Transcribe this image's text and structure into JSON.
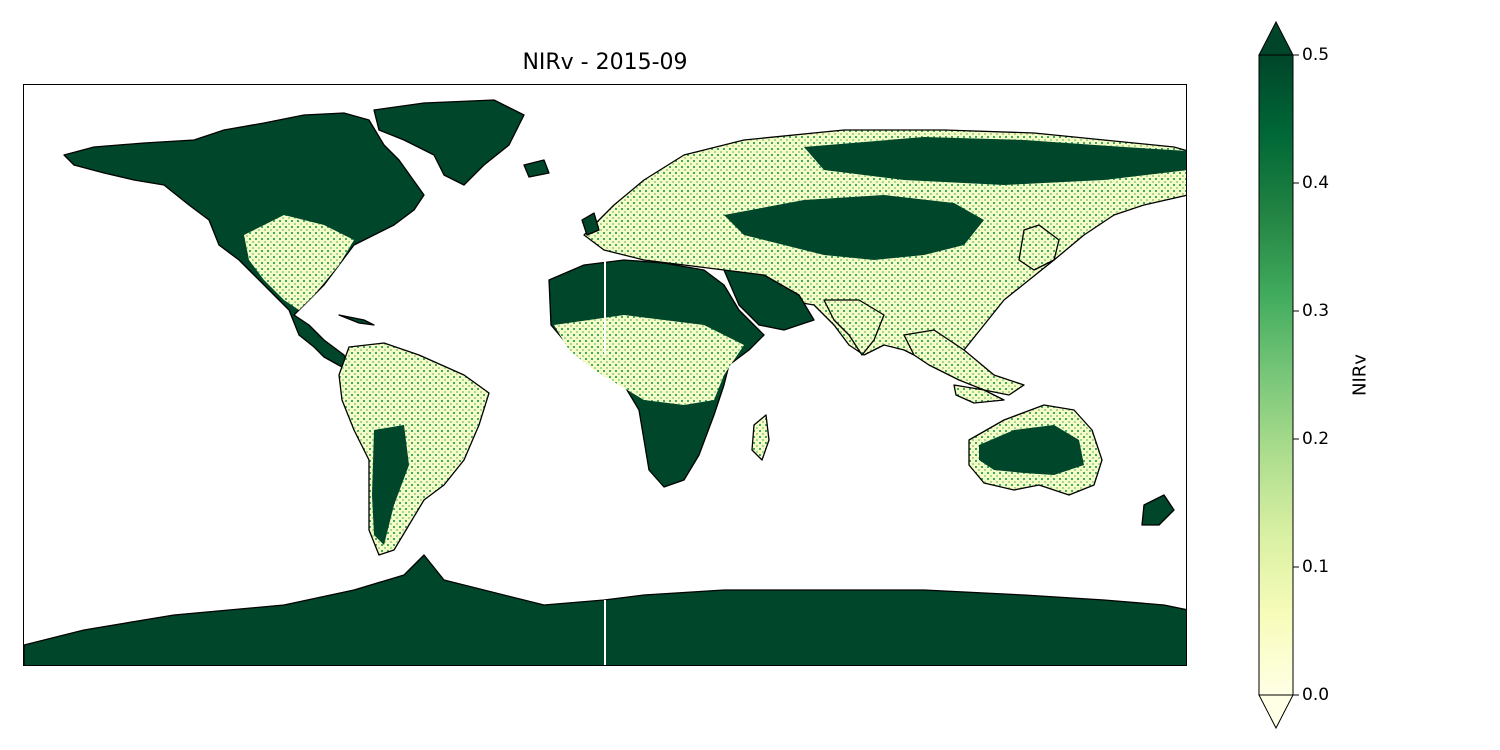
{
  "title": "NIRv - 2015-09",
  "colorbar": {
    "label": "NIRv",
    "min": 0.0,
    "max": 0.5,
    "extend": "both",
    "ticks": [
      "0.0",
      "0.1",
      "0.2",
      "0.3",
      "0.4",
      "0.5"
    ],
    "colormap": "YlGn",
    "stops": [
      "#ffffe5",
      "#f7fcb9",
      "#d9f0a3",
      "#addd8e",
      "#78c679",
      "#41ab5d",
      "#238443",
      "#006837",
      "#004529"
    ]
  },
  "map": {
    "projection": "PlateCarree",
    "land_high_color": "#00462a",
    "land_low_color": "#f5fbc8",
    "coastline_color": "#000000"
  }
}
